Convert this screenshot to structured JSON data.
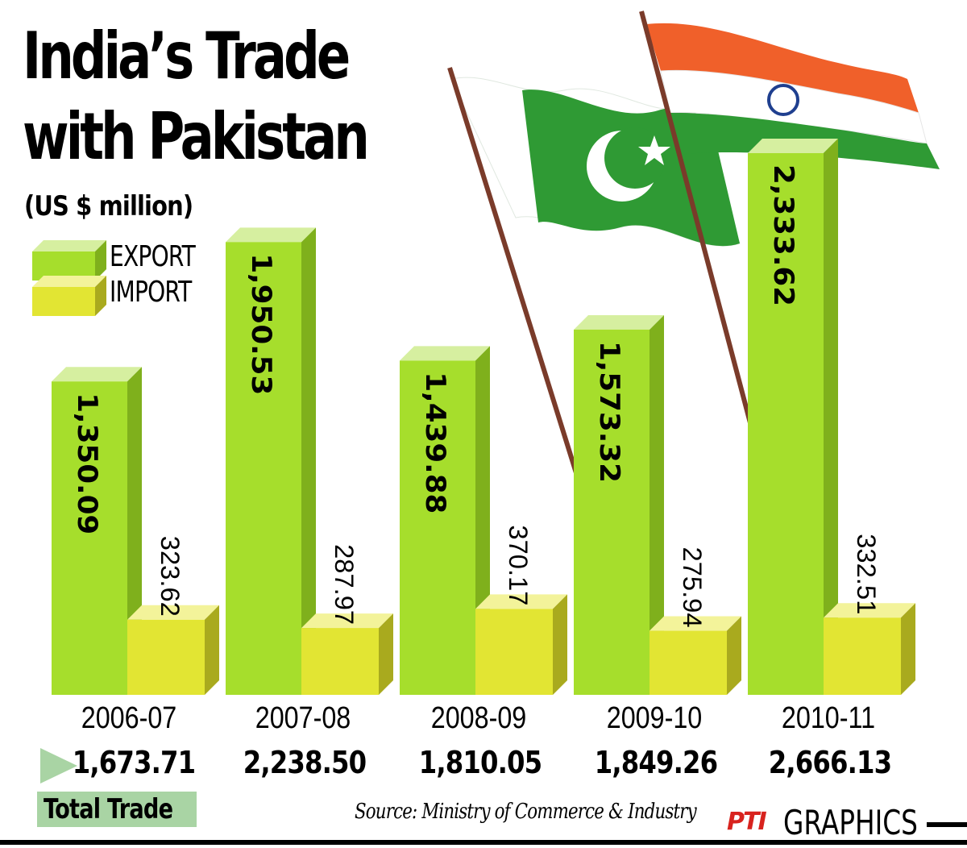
{
  "colors": {
    "export_front": "#a6de2c",
    "export_side": "#7fb01c",
    "export_top": "#d6efa0",
    "import_front": "#e2e533",
    "import_side": "#a9aa1e",
    "import_top": "#f3f39a",
    "pakistan_green": "#2f9a34",
    "india_saffron": "#f0602a",
    "india_green": "#2f9a34",
    "chakra_blue": "#1f3f8f",
    "pole": "#7a3b2a"
  },
  "icons": {
    "total_arrow": "triangle-right-icon",
    "pakistan_flag": "pakistan-flag-icon",
    "india_flag": "india-flag-icon"
  },
  "header": {
    "title_line1": "India’s Trade",
    "title_line2": "with Pakistan",
    "units": "(US $ million)"
  },
  "legend": {
    "export_label": "EXPORT",
    "import_label": "IMPORT"
  },
  "footer": {
    "total_trade_label": "Total Trade",
    "source": "Source: Ministry of Commerce & Industry",
    "logo": "PTI",
    "graphics_label": "GRAPHICS"
  },
  "chart_data": {
    "type": "bar",
    "categories": [
      "2006-07",
      "2007-08",
      "2008-09",
      "2009-10",
      "2010-11"
    ],
    "series": [
      {
        "name": "EXPORT",
        "values": [
          1350.09,
          1950.53,
          1439.88,
          1573.32,
          2333.62
        ],
        "labels": [
          "1,350.09",
          "1,950.53",
          "1,439.88",
          "1,573.32",
          "2,333.62"
        ]
      },
      {
        "name": "IMPORT",
        "values": [
          323.62,
          287.97,
          370.17,
          275.94,
          332.51
        ],
        "labels": [
          "323.62",
          "287.97",
          "370.17",
          "275.94",
          "332.51"
        ]
      }
    ],
    "total_trade": {
      "values": [
        1673.71,
        2238.5,
        1810.05,
        1849.26,
        2666.13
      ],
      "labels": [
        "1,673.71",
        "2,238.50",
        "1,810.05",
        "1,849.26",
        "2,666.13"
      ]
    },
    "title": "India’s Trade with Pakistan",
    "ylabel": "(US $ million)"
  }
}
